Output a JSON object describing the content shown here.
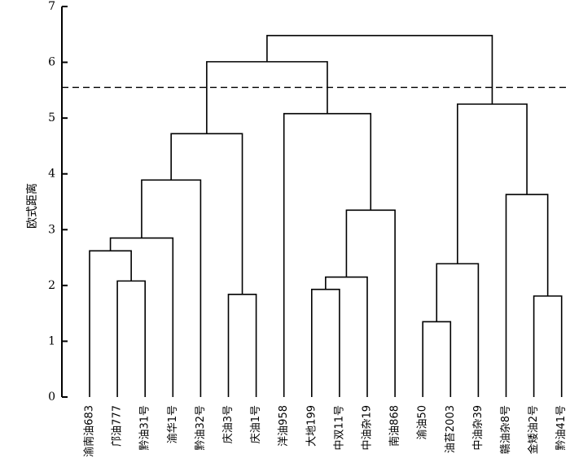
{
  "chart_data": {
    "type": "dendrogram",
    "ylabel": "欧式距离",
    "ylim": [
      0,
      7
    ],
    "yticks": [
      0,
      1,
      2,
      3,
      4,
      5,
      6,
      7
    ],
    "cut_height": 5.55,
    "leaves": [
      "渝南油683",
      "邝油777",
      "黔油31号",
      "渝华1号",
      "黔油32号",
      "庆油3号",
      "庆油1号",
      "洋油958",
      "大地199",
      "中双11号",
      "中油杂19",
      "南油868",
      "渝油50",
      "油苔2003",
      "中油杂39",
      "赣油杂8号",
      "金矮油2号",
      "黔油41号"
    ],
    "merges": [
      {
        "left": 13,
        "right": 14,
        "height": 1.35
      },
      {
        "left": 17,
        "right": 18,
        "height": 1.81
      },
      {
        "left": 6,
        "right": 7,
        "height": 1.84
      },
      {
        "left": 9,
        "right": 10,
        "height": 1.93
      },
      {
        "left": 2,
        "right": 3,
        "height": 2.08
      },
      {
        "left": -4,
        "right": 11,
        "height": 2.15
      },
      {
        "left": -1,
        "right": 15,
        "height": 2.39
      },
      {
        "left": 1,
        "right": -5,
        "height": 2.62
      },
      {
        "left": -8,
        "right": 4,
        "height": 2.85
      },
      {
        "left": -6,
        "right": 12,
        "height": 3.35
      },
      {
        "left": 16,
        "right": -2,
        "height": 3.63
      },
      {
        "left": -9,
        "right": 5,
        "height": 3.89
      },
      {
        "left": -12,
        "right": -3,
        "height": 4.72
      },
      {
        "left": 8,
        "right": -10,
        "height": 5.08
      },
      {
        "left": -7,
        "right": -11,
        "height": 5.25
      },
      {
        "left": -13,
        "right": -14,
        "height": 6.01
      },
      {
        "left": -16,
        "right": -15,
        "height": 6.48
      }
    ]
  }
}
